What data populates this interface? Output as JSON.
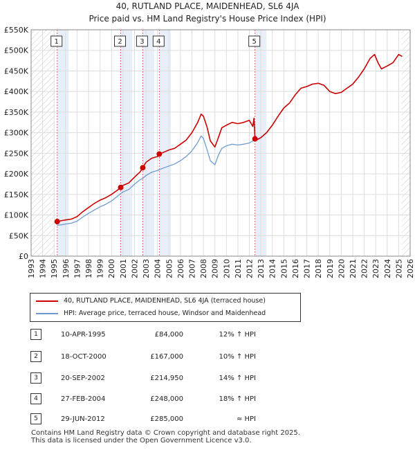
{
  "title_line1": "40, RUTLAND PLACE, MAIDENHEAD, SL6 4JA",
  "title_line2": "Price paid vs. HM Land Registry's House Price Index (HPI)",
  "colors": {
    "property": "#cc0000",
    "hpi": "#6d9bd1",
    "grid": "#dddddd",
    "shade": "#dfe8f6",
    "marker_line": "#e06666"
  },
  "chart_data": {
    "type": "line",
    "title": "Price paid vs. HM Land Registry's House Price Index (HPI)",
    "xlabel": "",
    "ylabel": "",
    "xlim": [
      1993,
      2026
    ],
    "ylim": [
      0,
      550000
    ],
    "y_ticks": [
      0,
      50000,
      100000,
      150000,
      200000,
      250000,
      300000,
      350000,
      400000,
      450000,
      500000,
      550000
    ],
    "y_tick_labels": [
      "£0",
      "£50K",
      "£100K",
      "£150K",
      "£200K",
      "£250K",
      "£300K",
      "£350K",
      "£400K",
      "£450K",
      "£500K",
      "£550K"
    ],
    "x_ticks": [
      1993,
      1994,
      1995,
      1996,
      1997,
      1998,
      1999,
      2000,
      2001,
      2002,
      2003,
      2004,
      2005,
      2006,
      2007,
      2008,
      2009,
      2010,
      2011,
      2012,
      2013,
      2014,
      2015,
      2016,
      2017,
      2018,
      2019,
      2020,
      2021,
      2022,
      2023,
      2024,
      2025,
      2026
    ],
    "x_tick_labels": [
      "1993",
      "1994",
      "1995",
      "1996",
      "1997",
      "1998",
      "1999",
      "2000",
      "2001",
      "2002",
      "2003",
      "2004",
      "2005",
      "2006",
      "2007",
      "2008",
      "2009",
      "2010",
      "2011",
      "2012",
      "2013",
      "2014",
      "2015",
      "2016",
      "2017",
      "2018",
      "2019",
      "2020",
      "2021",
      "2022",
      "2023",
      "2024",
      "2025",
      "2026"
    ],
    "hatched_ranges": [
      [
        1993,
        1995.0
      ],
      [
        2025.25,
        2026
      ]
    ],
    "series": [
      {
        "name": "40, RUTLAND PLACE, MAIDENHEAD, SL6 4JA (terraced house)",
        "color": "#cc0000",
        "x": [
          1995.27,
          1995.6,
          1996.0,
          1996.5,
          1997.0,
          1997.5,
          1998.0,
          1998.5,
          1999.0,
          1999.5,
          2000.0,
          2000.5,
          2000.8,
          2001.0,
          2001.5,
          2002.0,
          2002.5,
          2002.72,
          2003.0,
          2003.5,
          2004.0,
          2004.16,
          2004.5,
          2005.0,
          2005.5,
          2006.0,
          2006.5,
          2007.0,
          2007.5,
          2007.8,
          2008.0,
          2008.3,
          2008.6,
          2009.0,
          2009.3,
          2009.6,
          2010.0,
          2010.5,
          2011.0,
          2011.5,
          2012.0,
          2012.3,
          2012.4,
          2012.49,
          2012.7,
          2013.0,
          2013.5,
          2014.0,
          2014.5,
          2015.0,
          2015.5,
          2016.0,
          2016.5,
          2017.0,
          2017.5,
          2018.0,
          2018.5,
          2019.0,
          2019.5,
          2020.0,
          2020.5,
          2021.0,
          2021.5,
          2022.0,
          2022.5,
          2022.9,
          2023.2,
          2023.5,
          2024.0,
          2024.5,
          2025.0,
          2025.3
        ],
        "values": [
          84000,
          86000,
          88000,
          90000,
          96000,
          108000,
          118000,
          128000,
          136000,
          142000,
          150000,
          160000,
          167000,
          172000,
          178000,
          192000,
          205000,
          214950,
          228000,
          238000,
          242000,
          248000,
          252000,
          258000,
          262000,
          272000,
          282000,
          300000,
          325000,
          345000,
          340000,
          315000,
          280000,
          265000,
          288000,
          312000,
          318000,
          325000,
          322000,
          325000,
          330000,
          315000,
          335000,
          285000,
          283000,
          288000,
          300000,
          318000,
          340000,
          360000,
          372000,
          392000,
          408000,
          412000,
          418000,
          420000,
          415000,
          400000,
          395000,
          398000,
          408000,
          418000,
          435000,
          455000,
          480000,
          490000,
          470000,
          455000,
          462000,
          470000,
          490000,
          485000
        ]
      },
      {
        "name": "HPI: Average price, terraced house, Windsor and Maidenhead",
        "color": "#6d9bd1",
        "x": [
          1995.27,
          1995.6,
          1996.0,
          1996.5,
          1997.0,
          1997.5,
          1998.0,
          1998.5,
          1999.0,
          1999.5,
          2000.0,
          2000.5,
          2000.8,
          2001.0,
          2001.5,
          2002.0,
          2002.5,
          2002.72,
          2003.0,
          2003.5,
          2004.0,
          2004.16,
          2004.5,
          2005.0,
          2005.5,
          2006.0,
          2006.5,
          2007.0,
          2007.5,
          2007.8,
          2008.0,
          2008.3,
          2008.6,
          2009.0,
          2009.3,
          2009.6,
          2010.0,
          2010.5,
          2011.0,
          2011.5,
          2012.0,
          2012.49,
          2012.7,
          2013.0,
          2013.5,
          2014.0,
          2014.5,
          2015.0,
          2015.5,
          2016.0,
          2016.5,
          2017.0,
          2017.5,
          2018.0,
          2018.5,
          2019.0,
          2019.5,
          2020.0,
          2020.5,
          2021.0,
          2021.5,
          2022.0,
          2022.5,
          2022.9,
          2023.2,
          2023.5,
          2024.0,
          2024.5,
          2025.0,
          2025.3
        ],
        "values": [
          75000,
          76000,
          78000,
          80000,
          85000,
          95000,
          104000,
          112000,
          120000,
          126000,
          134000,
          145000,
          152000,
          156000,
          162000,
          175000,
          186000,
          189000,
          196000,
          204000,
          208000,
          210000,
          214000,
          219000,
          224000,
          232000,
          242000,
          256000,
          276000,
          292000,
          286000,
          260000,
          232000,
          222000,
          245000,
          262000,
          268000,
          272000,
          270000,
          272000,
          275000,
          283000,
          285000,
          288000,
          300000,
          318000,
          340000,
          360000,
          372000,
          392000,
          408000,
          412000,
          418000,
          420000,
          415000,
          400000,
          395000,
          398000,
          408000,
          418000,
          435000,
          455000,
          480000,
          490000,
          470000,
          455000,
          462000,
          470000,
          490000,
          485000
        ]
      }
    ],
    "sale_markers": [
      {
        "label": "1",
        "x": 1995.27,
        "value": 84000
      },
      {
        "label": "2",
        "x": 2000.8,
        "value": 167000
      },
      {
        "label": "3",
        "x": 2002.72,
        "value": 214950
      },
      {
        "label": "4",
        "x": 2004.16,
        "value": 248000
      },
      {
        "label": "5",
        "x": 2012.49,
        "value": 285000
      }
    ]
  },
  "legend": {
    "property": "40, RUTLAND PLACE, MAIDENHEAD, SL6 4JA (terraced house)",
    "hpi": "HPI: Average price, terraced house, Windsor and Maidenhead"
  },
  "sales": [
    {
      "num": "1",
      "date": "10-APR-1995",
      "price": "£84,000",
      "hpi": "12% ↑ HPI"
    },
    {
      "num": "2",
      "date": "18-OCT-2000",
      "price": "£167,000",
      "hpi": "10% ↑ HPI"
    },
    {
      "num": "3",
      "date": "20-SEP-2002",
      "price": "£214,950",
      "hpi": "14% ↑ HPI"
    },
    {
      "num": "4",
      "date": "27-FEB-2004",
      "price": "£248,000",
      "hpi": "18% ↑ HPI"
    },
    {
      "num": "5",
      "date": "29-JUN-2012",
      "price": "£285,000",
      "hpi": "≈ HPI"
    }
  ],
  "footer": {
    "line1": "Contains HM Land Registry data © Crown copyright and database right 2025.",
    "line2": "This data is licensed under the Open Government Licence v3.0."
  }
}
